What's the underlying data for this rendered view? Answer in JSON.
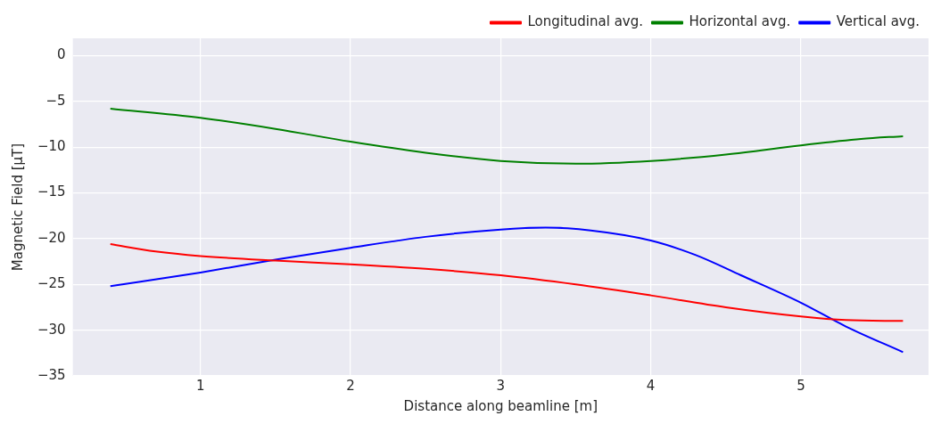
{
  "chart_data": {
    "type": "line",
    "xlabel": "Distance along beamline [m]",
    "ylabel": "Magnetic Field [µT]",
    "xlim": [
      0.15,
      5.85
    ],
    "xticks": [
      1,
      2,
      3,
      4,
      5
    ],
    "ylim": [
      -35,
      1.9
    ],
    "yticks": [
      0,
      -5,
      -10,
      -15,
      -20,
      -25,
      -30,
      -35
    ],
    "grid": true,
    "legend": "top right",
    "line_style": "solid",
    "marker": "none",
    "series": [
      {
        "name": "Longitudinal avg.",
        "color": "#ff0000",
        "x": [
          0.4,
          0.7,
          1,
          1.5,
          2,
          2.5,
          3,
          3.5,
          4,
          4.5,
          5,
          5.3,
          5.68
        ],
        "values": [
          -20.6,
          -21.4,
          -21.9,
          -22.4,
          -22.8,
          -23.3,
          -24.0,
          -25.0,
          -26.2,
          -27.5,
          -28.5,
          -28.9,
          -29.0
        ]
      },
      {
        "name": "Horizontal avg.",
        "color": "#008000",
        "x": [
          0.4,
          1,
          1.5,
          2,
          2.5,
          3,
          3.5,
          4,
          4.5,
          5,
          5.4,
          5.68
        ],
        "values": [
          -5.8,
          -6.8,
          -8.0,
          -9.4,
          -10.6,
          -11.5,
          -11.8,
          -11.5,
          -10.8,
          -9.8,
          -9.1,
          -8.8
        ]
      },
      {
        "name": "Vertical avg.",
        "color": "#0000ff",
        "x": [
          0.4,
          1,
          1.5,
          2,
          2.5,
          3,
          3.3,
          3.6,
          4,
          4.3,
          4.6,
          5,
          5.3,
          5.68
        ],
        "values": [
          -25.2,
          -23.7,
          -22.3,
          -21.0,
          -19.8,
          -19.0,
          -18.8,
          -19.1,
          -20.2,
          -21.8,
          -24.0,
          -27.0,
          -29.6,
          -32.4
        ]
      }
    ]
  }
}
